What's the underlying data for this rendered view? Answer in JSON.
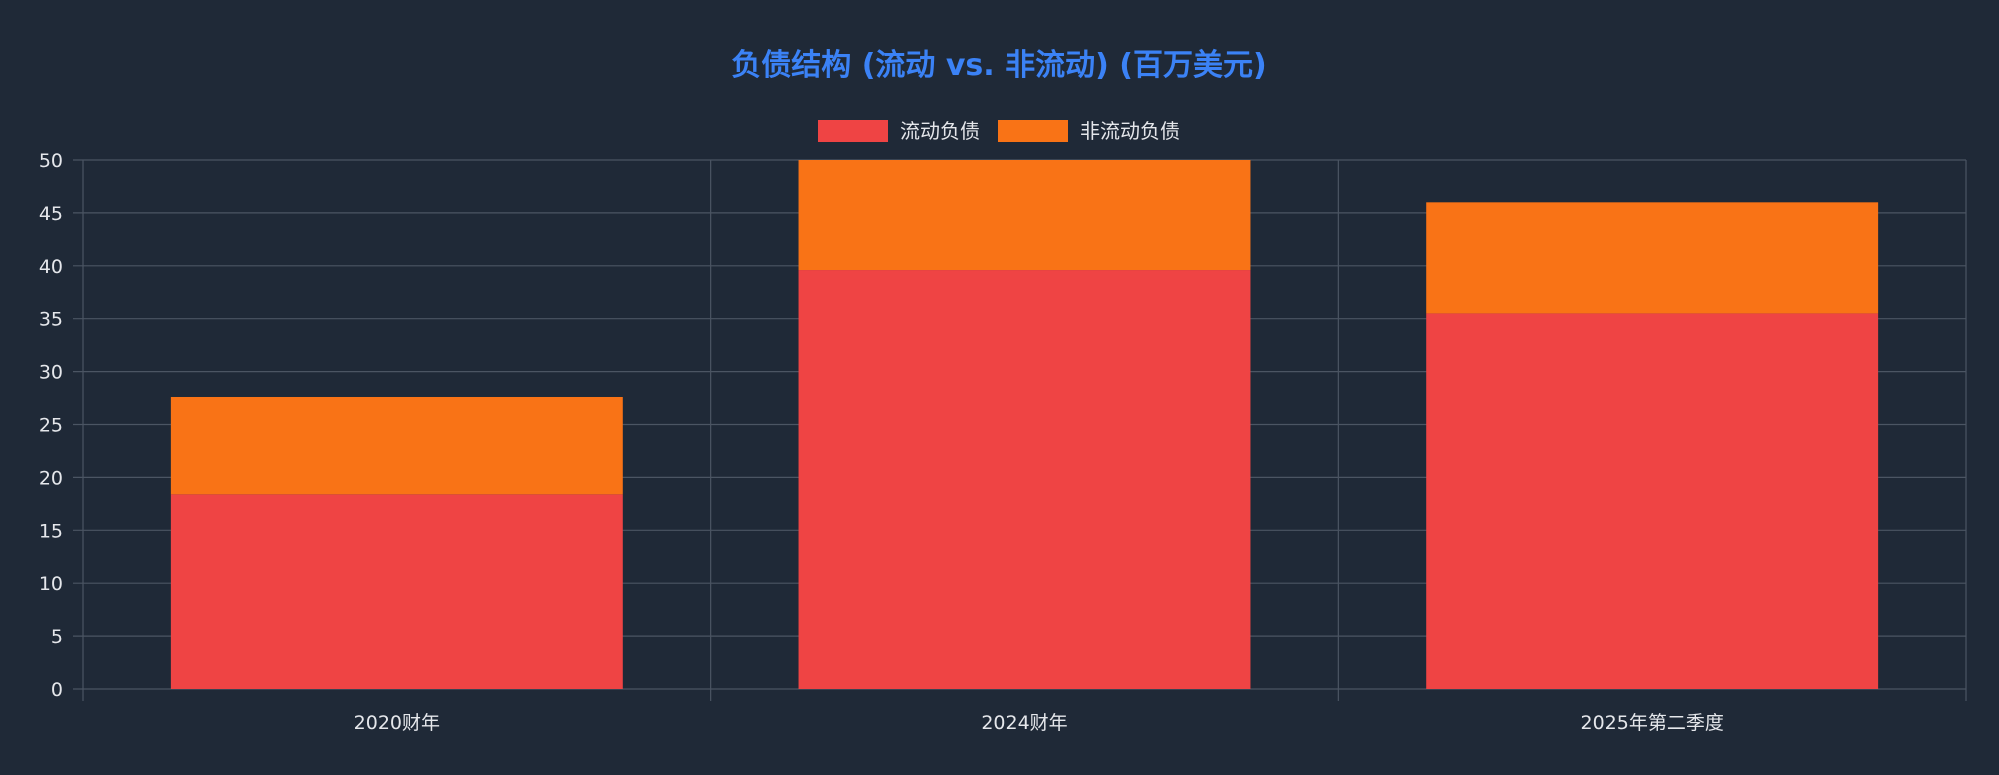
{
  "chart_data": {
    "type": "bar",
    "stacked": true,
    "title": "负债结构 (流动 vs. 非流动) (百万美元)",
    "categories": [
      "2020财年",
      "2024财年",
      "2025年第二季度"
    ],
    "series": [
      {
        "name": "流动负债",
        "values": [
          18.4,
          39.6,
          35.5
        ],
        "color": "#ef4444"
      },
      {
        "name": "非流动负债",
        "values": [
          9.2,
          10.4,
          10.5
        ],
        "color": "#f97316"
      }
    ],
    "ylim": [
      0,
      50
    ],
    "yticks": [
      0,
      5,
      10,
      15,
      20,
      25,
      30,
      35,
      40,
      45,
      50
    ],
    "grid": true,
    "legend": "top-center"
  },
  "colors": {
    "background": "#1f2937",
    "grid": "#4b5563",
    "text": "#e5e7eb",
    "title": "#3b82f6"
  }
}
